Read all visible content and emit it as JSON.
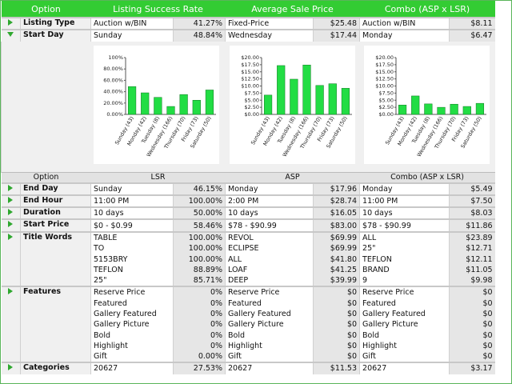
{
  "header": [
    "Option",
    "Listing Success Rate",
    "Average Sale Price",
    "Combo (ASP x LSR)"
  ],
  "top_groups": [
    {
      "label": "Listing Type",
      "rows": [
        [
          "Auction w/BIN",
          "41.27%",
          "Fixed-Price",
          "$25.48",
          "Auction w/BIN",
          "$8.11"
        ]
      ]
    },
    {
      "label": "Start Day",
      "rows": [
        [
          "Sunday",
          "48.84%",
          "Wednesday",
          "$17.44",
          "Monday",
          "$6.47"
        ]
      ]
    }
  ],
  "chart_data": [
    {
      "type": "bar",
      "color": "#22dd44",
      "categories": [
        "Sunday (43)",
        "Monday (42)",
        "Tuesday (8)",
        "Wednesday (166)",
        "Thursday (70)",
        "Friday (73)",
        "Saturday (50)"
      ],
      "values": [
        49,
        38,
        30,
        14,
        35,
        25,
        43
      ],
      "ylim": [
        0,
        100
      ],
      "yticks": [
        {
          "value": 0,
          "label": "0.00%"
        },
        {
          "value": 20,
          "label": "20.00%"
        },
        {
          "value": 40,
          "label": "40.00%"
        },
        {
          "value": 60,
          "label": "60.00%"
        },
        {
          "value": 80,
          "label": "80.00%"
        },
        {
          "value": 100,
          "label": "100%"
        }
      ]
    },
    {
      "type": "bar",
      "color": "#22dd44",
      "categories": [
        "Sunday (43)",
        "Monday (42)",
        "Tuesday (8)",
        "Wednesday (166)",
        "Thursday (70)",
        "Friday (73)",
        "Saturday (50)"
      ],
      "values": [
        6.8,
        17.2,
        12.4,
        17.4,
        10.2,
        10.8,
        9.2
      ],
      "ylim": [
        0,
        20
      ],
      "yticks": [
        {
          "value": 0,
          "label": "$0.00"
        },
        {
          "value": 2.5,
          "label": "$2.50"
        },
        {
          "value": 5,
          "label": "$5.00"
        },
        {
          "value": 7.5,
          "label": "$7.50"
        },
        {
          "value": 10,
          "label": "$10.00"
        },
        {
          "value": 12.5,
          "label": "$12.50"
        },
        {
          "value": 15,
          "label": "$15.00"
        },
        {
          "value": 17.5,
          "label": "$17.50"
        },
        {
          "value": 20,
          "label": "$20.00"
        }
      ]
    },
    {
      "type": "bar",
      "color": "#22dd44",
      "categories": [
        "Sunday (43)",
        "Monday (42)",
        "Tuesday (8)",
        "Wednesday (166)",
        "Thursday (70)",
        "Friday (73)",
        "Saturday (50)"
      ],
      "values": [
        3.3,
        6.5,
        3.7,
        2.5,
        3.6,
        2.8,
        3.9
      ],
      "ylim": [
        0,
        20
      ],
      "yticks": [
        {
          "value": 0,
          "label": "$0.00"
        },
        {
          "value": 2.5,
          "label": "$2.50"
        },
        {
          "value": 5,
          "label": "$5.00"
        },
        {
          "value": 7.5,
          "label": "$7.50"
        },
        {
          "value": 10,
          "label": "$10.00"
        },
        {
          "value": 12.5,
          "label": "$12.50"
        },
        {
          "value": 15,
          "label": "$15.00"
        },
        {
          "value": 17.5,
          "label": "$17.50"
        },
        {
          "value": 20,
          "label": "$20.00"
        }
      ]
    }
  ],
  "header2": [
    "Option",
    "LSR",
    "ASP",
    "Combo (ASP x LSR)"
  ],
  "bottom_groups": [
    {
      "label": "End Day",
      "rows": [
        [
          "Sunday",
          "46.15%",
          "Monday",
          "$17.96",
          "Monday",
          "$5.49"
        ]
      ]
    },
    {
      "label": "End Hour",
      "rows": [
        [
          "11:00 PM",
          "100.00%",
          "2:00 PM",
          "$28.74",
          "11:00 PM",
          "$7.50"
        ]
      ]
    },
    {
      "label": "Duration",
      "rows": [
        [
          "10 days",
          "50.00%",
          "10 days",
          "$16.05",
          "10 days",
          "$8.03"
        ]
      ]
    },
    {
      "label": "Start Price",
      "rows": [
        [
          "$0 - $0.99",
          "58.46%",
          "$78 - $90.99",
          "$83.00",
          "$78 - $90.99",
          "$11.86"
        ]
      ]
    },
    {
      "label": "Title Words",
      "rows": [
        [
          "TABLE",
          "100.00%",
          "REVOL",
          "$69.99",
          "ALL",
          "$23.89"
        ],
        [
          "TO",
          "100.00%",
          "ECLIPSE",
          "$69.99",
          "25\"",
          "$12.71"
        ],
        [
          "5153BRY",
          "100.00%",
          "ALL",
          "$41.80",
          "TEFLON",
          "$12.11"
        ],
        [
          "TEFLON",
          "88.89%",
          "LOAF",
          "$41.25",
          "BRAND",
          "$11.05"
        ],
        [
          "25\"",
          "85.71%",
          "DEEP",
          "$39.99",
          "9",
          "$9.98"
        ]
      ]
    },
    {
      "label": "Features",
      "rows": [
        [
          "Reserve Price",
          "0%",
          "Reserve Price",
          "$0",
          "Reserve Price",
          "$0"
        ],
        [
          "Featured",
          "0%",
          "Featured",
          "$0",
          "Featured",
          "$0"
        ],
        [
          "Gallery Featured",
          "0%",
          "Gallery Featured",
          "$0",
          "Gallery Featured",
          "$0"
        ],
        [
          "Gallery Picture",
          "0%",
          "Gallery Picture",
          "$0",
          "Gallery Picture",
          "$0"
        ],
        [
          "Bold",
          "0%",
          "Bold",
          "$0",
          "Bold",
          "$0"
        ],
        [
          "Highlight",
          "0%",
          "Highlight",
          "$0",
          "Highlight",
          "$0"
        ],
        [
          "Gift",
          "0.00%",
          "Gift",
          "$0",
          "Gift",
          "$0"
        ]
      ]
    },
    {
      "label": "Categories",
      "rows": [
        [
          "20627",
          "27.53%",
          "20627",
          "$11.53",
          "20627",
          "$3.17"
        ]
      ]
    }
  ]
}
